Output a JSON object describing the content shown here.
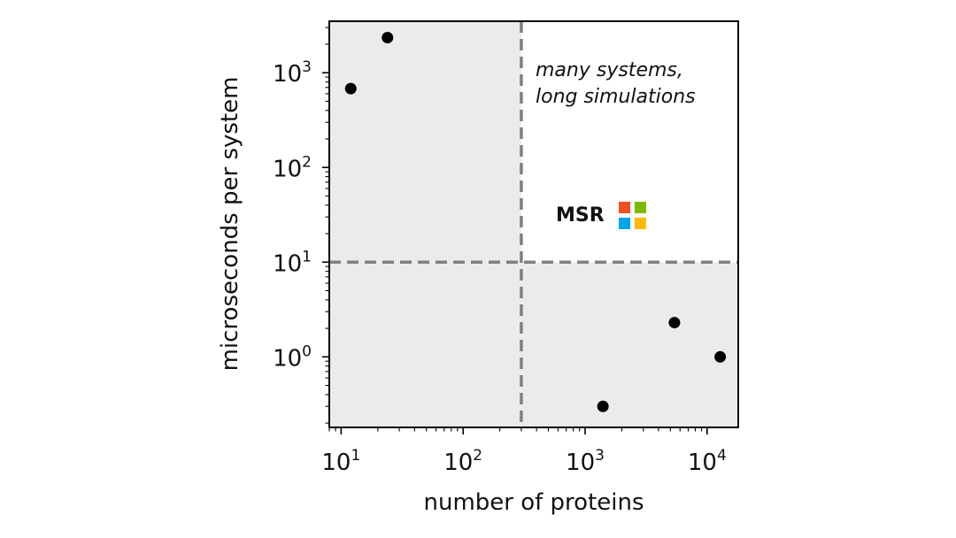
{
  "chart_data": {
    "type": "scatter",
    "xscale": "log",
    "yscale": "log",
    "xlim": [
      8,
      18000
    ],
    "ylim": [
      0.18,
      3500
    ],
    "xlabel": "number of proteins",
    "ylabel": "microseconds per system",
    "x_ticks": [
      {
        "value": 10,
        "base": "10",
        "exp": "1"
      },
      {
        "value": 100,
        "base": "10",
        "exp": "2"
      },
      {
        "value": 1000,
        "base": "10",
        "exp": "3"
      },
      {
        "value": 10000,
        "base": "10",
        "exp": "4"
      }
    ],
    "y_ticks": [
      {
        "value": 1,
        "base": "10",
        "exp": "0"
      },
      {
        "value": 10,
        "base": "10",
        "exp": "1"
      },
      {
        "value": 100,
        "base": "10",
        "exp": "2"
      },
      {
        "value": 1000,
        "base": "10",
        "exp": "3"
      }
    ],
    "points": [
      {
        "x": 12,
        "y": 680
      },
      {
        "x": 24,
        "y": 2350
      },
      {
        "x": 1400,
        "y": 0.3
      },
      {
        "x": 5400,
        "y": 2.3
      },
      {
        "x": 12800,
        "y": 1.0
      }
    ],
    "thresholds": {
      "x": 300,
      "y": 10
    },
    "shaded_regions": "all quadrants except top-right",
    "grid": false,
    "annotation": {
      "lines": [
        "many systems,",
        "long simulations"
      ],
      "region": "top-right"
    },
    "logo": {
      "text": "MSR",
      "colors": [
        "#f25022",
        "#7fba00",
        "#00a4ef",
        "#ffb900"
      ]
    },
    "colors": {
      "points": "#000000",
      "shade": "#ebebeb",
      "dashed": "#808080"
    }
  }
}
